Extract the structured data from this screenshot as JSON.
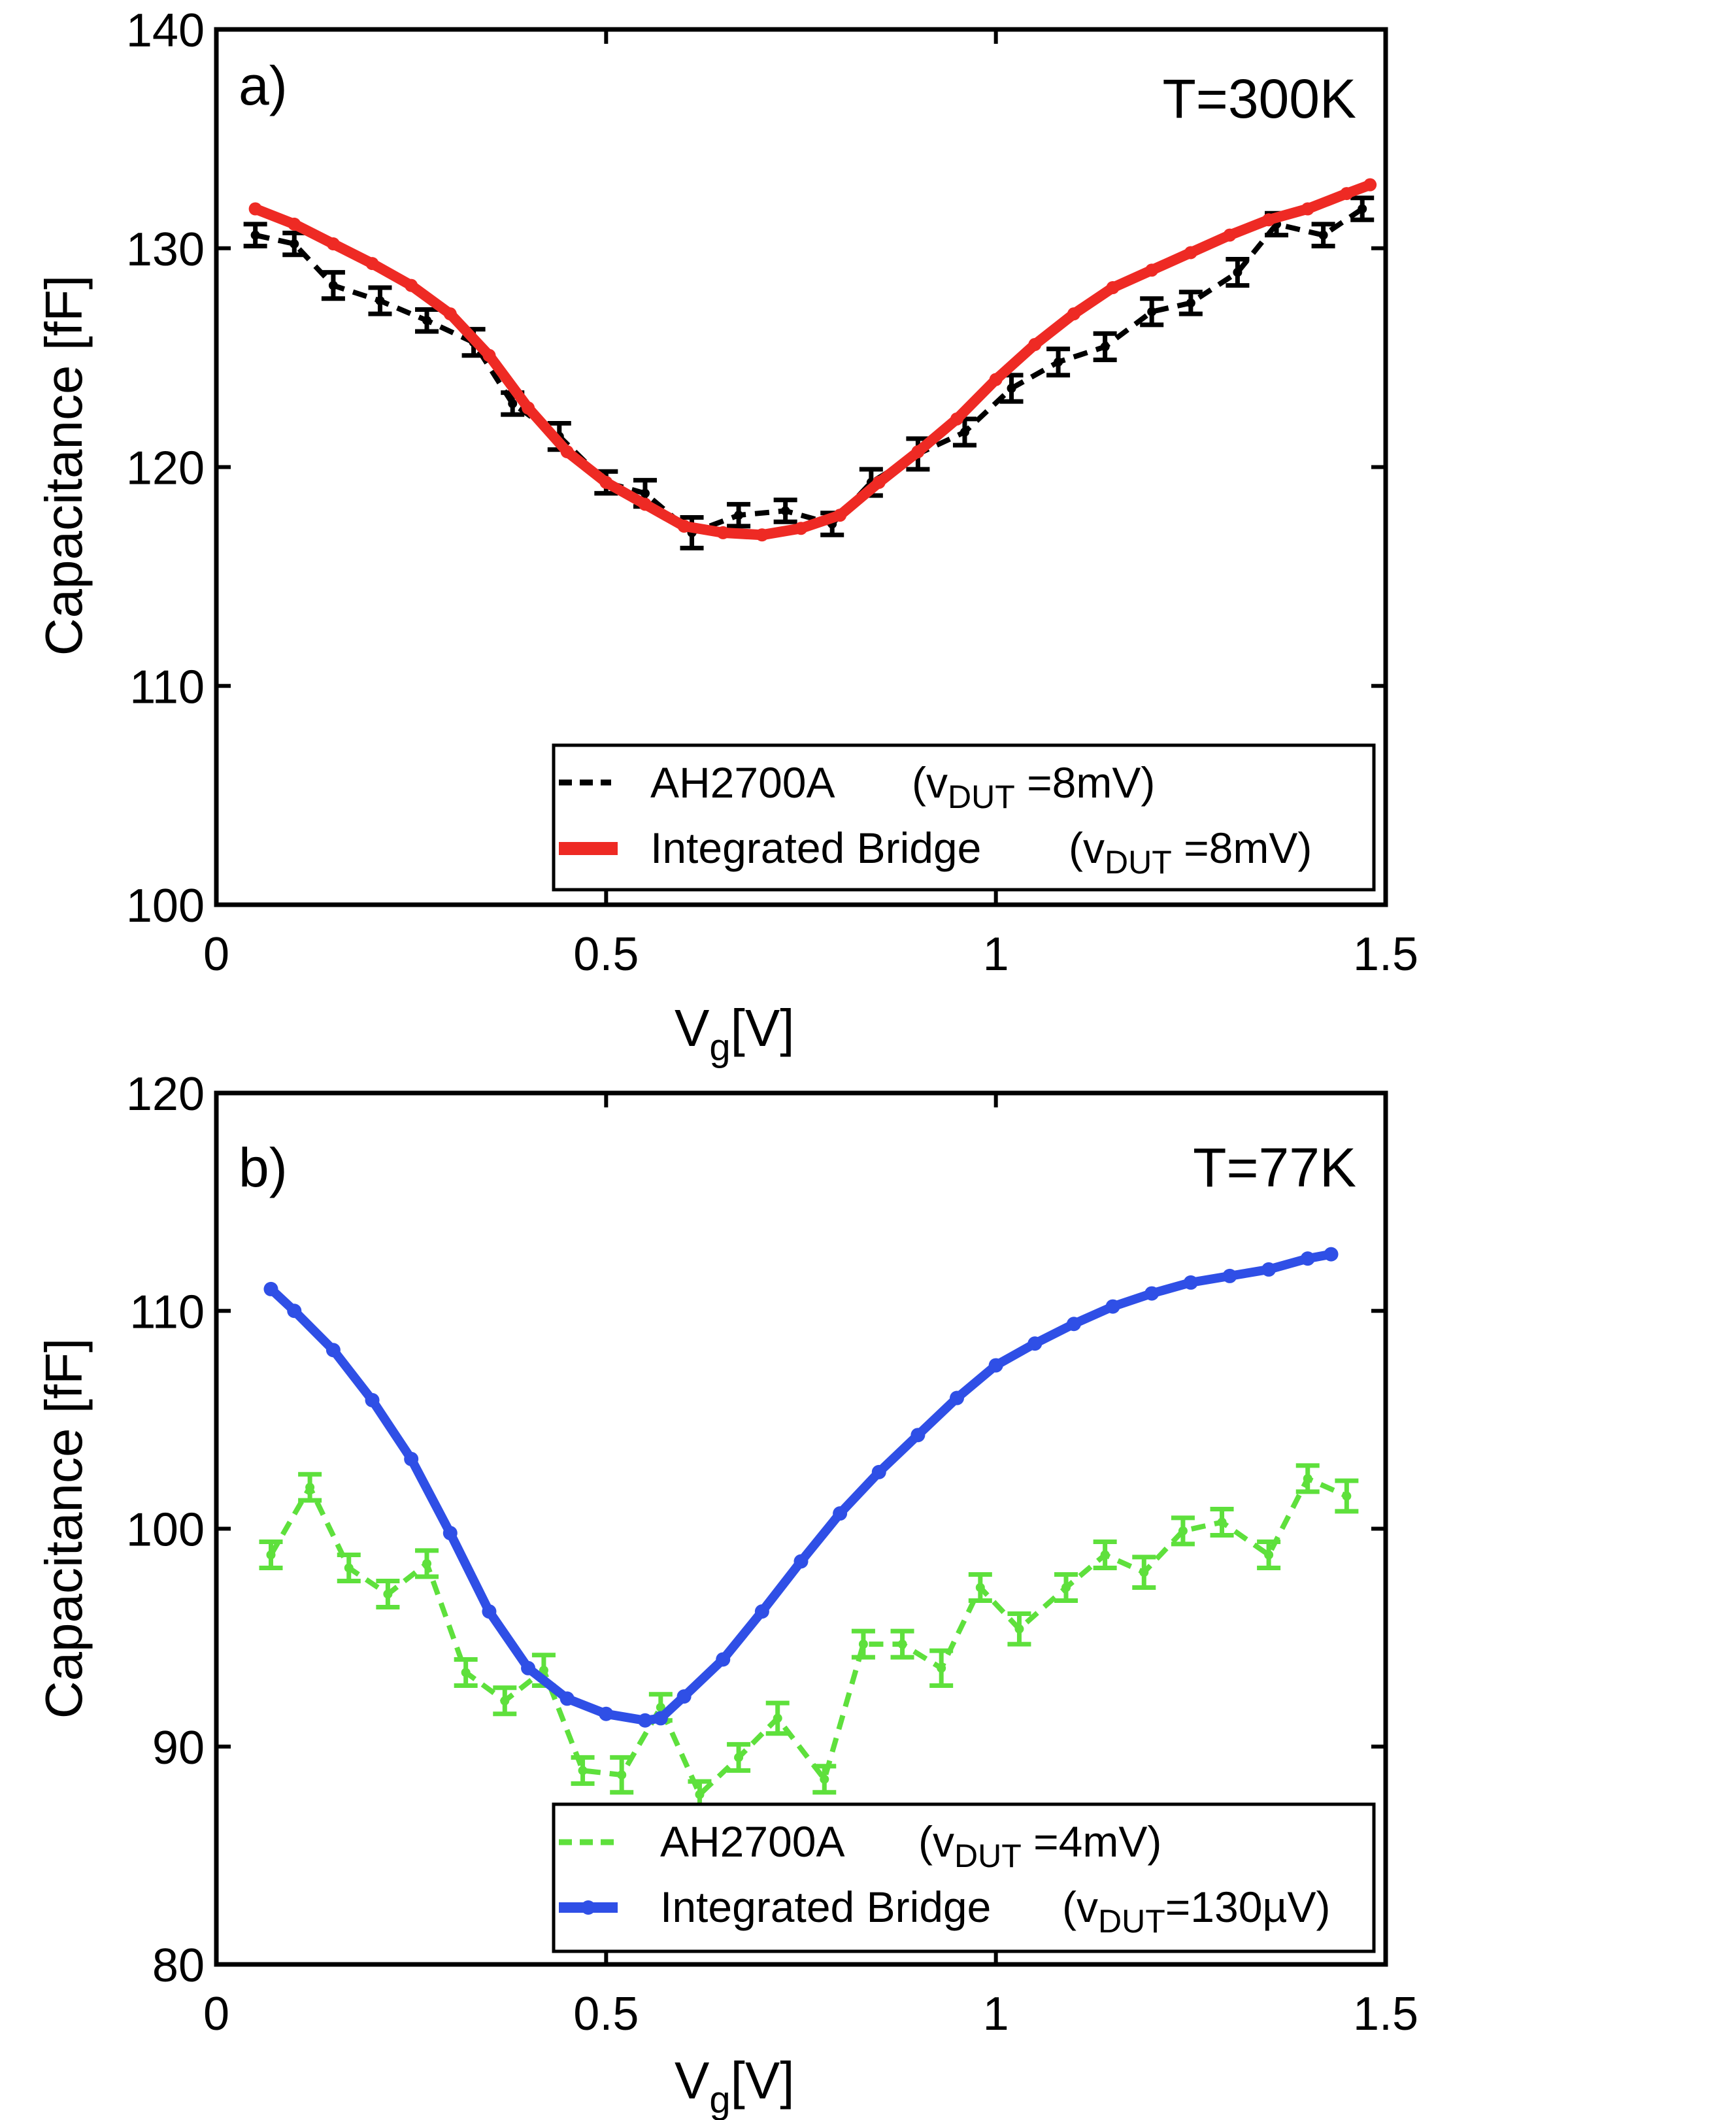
{
  "chart_data": [
    {
      "type": "line",
      "panel_label": "a)",
      "annotation": "T=300K",
      "xlabel": "V",
      "xlabel_sub": "g",
      "xlabel_unit": "[V]",
      "ylabel": "Capacitance [fF]",
      "xlim": [
        0,
        1.5
      ],
      "ylim": [
        100,
        140
      ],
      "xticks": [
        "0",
        "0.5",
        "1",
        "1.5"
      ],
      "yticks": [
        "100",
        "110",
        "120",
        "130",
        "140"
      ],
      "legend_position": "bottom-right",
      "series": [
        {
          "name": "AH2700A",
          "legend_detail": {
            "open": "(v",
            "sub": "DUT",
            "close": " =8mV)"
          },
          "color": "#000000",
          "style": "dashed-errorbar",
          "x": [
            0.05,
            0.1,
            0.15,
            0.21,
            0.27,
            0.33,
            0.38,
            0.44,
            0.5,
            0.55,
            0.61,
            0.67,
            0.73,
            0.79,
            0.84,
            0.9,
            0.96,
            1.02,
            1.08,
            1.14,
            1.2,
            1.25,
            1.31,
            1.36,
            1.42,
            1.47
          ],
          "y": [
            130.6,
            130.2,
            128.3,
            127.6,
            126.7,
            125.7,
            122.9,
            121.4,
            119.3,
            118.8,
            117.0,
            117.8,
            118.0,
            117.4,
            119.3,
            120.6,
            121.6,
            123.6,
            124.8,
            125.5,
            127.1,
            127.5,
            128.9,
            131.1,
            130.6,
            131.8
          ],
          "err": [
            0.5,
            0.5,
            0.6,
            0.6,
            0.5,
            0.6,
            0.5,
            0.6,
            0.5,
            0.6,
            0.7,
            0.5,
            0.5,
            0.5,
            0.6,
            0.7,
            0.6,
            0.6,
            0.6,
            0.6,
            0.6,
            0.5,
            0.6,
            0.5,
            0.5,
            0.5
          ]
        },
        {
          "name": "Integrated Bridge",
          "legend_detail": {
            "open": "(v",
            "sub": "DUT",
            "close": " =8mV)"
          },
          "color": "#ee2a24",
          "style": "solid-thick",
          "x": [
            0.05,
            0.1,
            0.15,
            0.2,
            0.25,
            0.3,
            0.35,
            0.4,
            0.45,
            0.5,
            0.55,
            0.6,
            0.65,
            0.7,
            0.75,
            0.8,
            0.85,
            0.9,
            0.95,
            1.0,
            1.05,
            1.1,
            1.15,
            1.2,
            1.25,
            1.3,
            1.35,
            1.4,
            1.45,
            1.48
          ],
          "y": [
            131.8,
            131.1,
            130.2,
            129.3,
            128.3,
            127.0,
            125.1,
            122.7,
            120.7,
            119.3,
            118.3,
            117.3,
            117.0,
            116.9,
            117.2,
            117.8,
            119.3,
            120.7,
            122.2,
            124.0,
            125.6,
            127.0,
            128.2,
            129.0,
            129.8,
            130.6,
            131.3,
            131.8,
            132.5,
            132.9
          ]
        }
      ]
    },
    {
      "type": "line",
      "panel_label": "b)",
      "annotation": "T=77K",
      "xlabel": "V",
      "xlabel_sub": "g",
      "xlabel_unit": "[V]",
      "ylabel": "Capacitance [fF]",
      "xlim": [
        0,
        1.5
      ],
      "ylim": [
        80,
        120
      ],
      "xticks": [
        "0",
        "0.5",
        "1",
        "1.5"
      ],
      "yticks": [
        "80",
        "90",
        "100",
        "110",
        "120"
      ],
      "legend_position": "bottom-right",
      "series": [
        {
          "name": "AH2700A",
          "legend_detail": {
            "open": "(v",
            "sub": "DUT",
            "close": " =4mV)"
          },
          "color": "#5ee03c",
          "style": "dashed-errorbar",
          "x": [
            0.07,
            0.12,
            0.17,
            0.22,
            0.27,
            0.32,
            0.37,
            0.42,
            0.47,
            0.52,
            0.57,
            0.62,
            0.67,
            0.72,
            0.78,
            0.83,
            0.88,
            0.93,
            0.98,
            1.03,
            1.09,
            1.14,
            1.19,
            1.24,
            1.29,
            1.35,
            1.4,
            1.45
          ],
          "y": [
            98.8,
            101.9,
            98.2,
            97.0,
            98.4,
            93.4,
            92.1,
            93.5,
            88.9,
            88.7,
            91.8,
            87.8,
            89.5,
            91.3,
            88.5,
            94.7,
            94.7,
            93.6,
            97.3,
            95.4,
            97.3,
            98.8,
            98.0,
            99.9,
            100.3,
            98.8,
            102.3,
            101.5
          ],
          "err": [
            0.6,
            0.6,
            0.6,
            0.6,
            0.6,
            0.6,
            0.6,
            0.7,
            0.6,
            0.8,
            0.6,
            0.6,
            0.6,
            0.7,
            0.6,
            0.6,
            0.6,
            0.8,
            0.6,
            0.7,
            0.6,
            0.6,
            0.7,
            0.6,
            0.6,
            0.6,
            0.6,
            0.7
          ]
        },
        {
          "name": "Integrated Bridge",
          "legend_detail": {
            "open": "(v",
            "sub": "DUT",
            "close": "=130µV)"
          },
          "color": "#2f4fe6",
          "style": "solid-thick",
          "x": [
            0.07,
            0.1,
            0.15,
            0.2,
            0.25,
            0.3,
            0.35,
            0.4,
            0.45,
            0.5,
            0.55,
            0.57,
            0.6,
            0.65,
            0.7,
            0.75,
            0.8,
            0.85,
            0.9,
            0.95,
            1.0,
            1.05,
            1.1,
            1.15,
            1.2,
            1.25,
            1.3,
            1.35,
            1.4,
            1.43
          ],
          "y": [
            111.0,
            110.0,
            108.2,
            105.9,
            103.2,
            99.8,
            96.2,
            93.6,
            92.2,
            91.5,
            91.2,
            91.3,
            92.3,
            94.0,
            96.2,
            98.5,
            100.7,
            102.6,
            104.3,
            106.0,
            107.5,
            108.5,
            109.4,
            110.2,
            110.8,
            111.3,
            111.6,
            111.9,
            112.4,
            112.6
          ]
        }
      ]
    }
  ]
}
